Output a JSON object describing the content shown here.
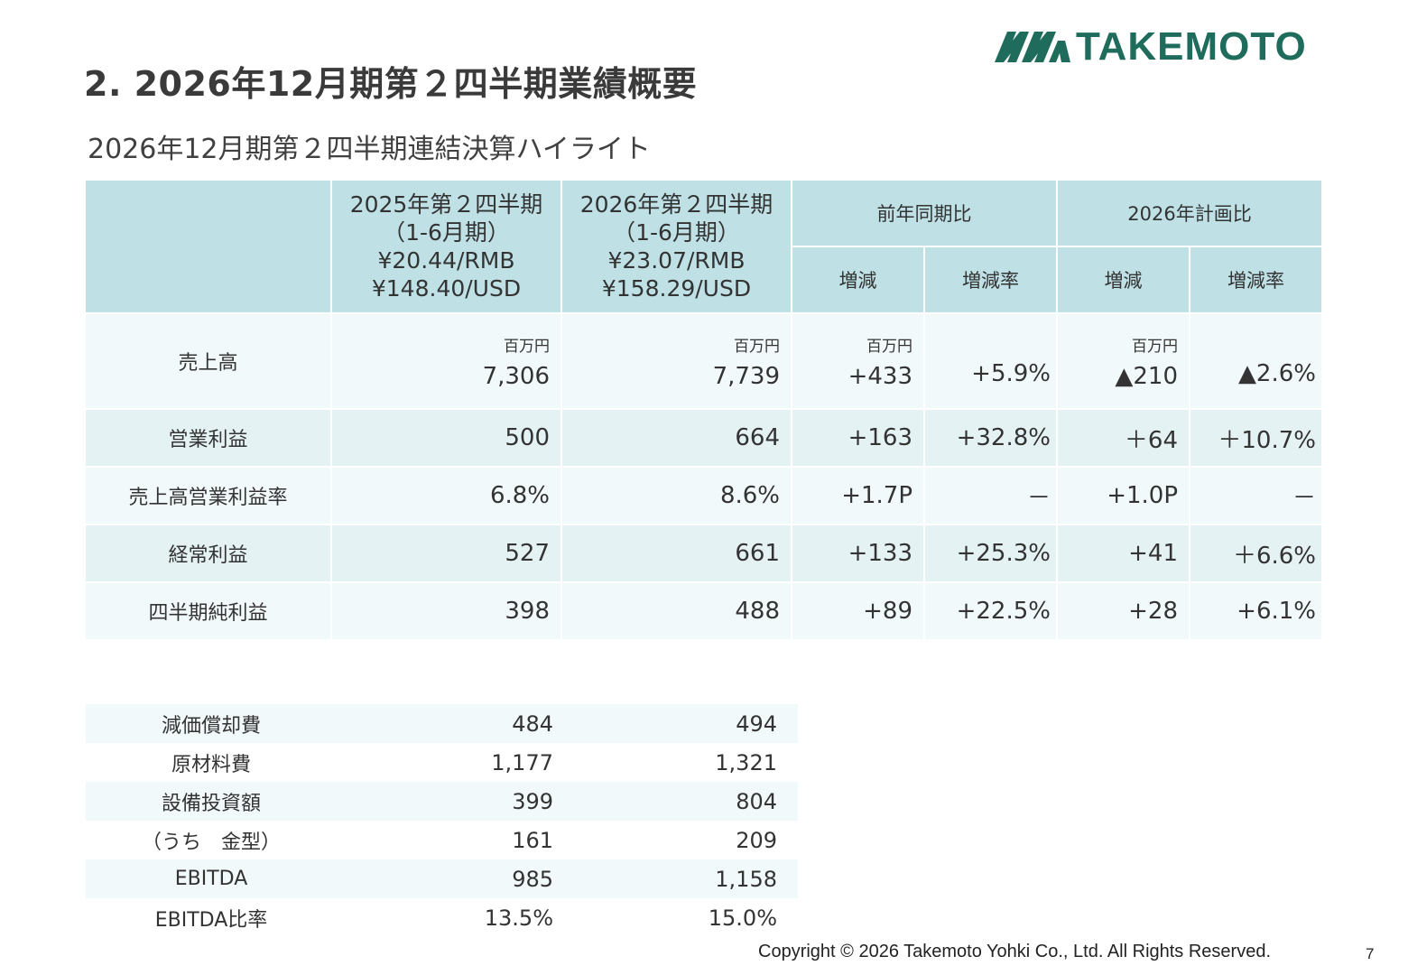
{
  "header": {
    "title": "2. 2026年12月期第２四半期業績概要",
    "subtitle": "2026年12月期第２四半期連結決算ハイライト",
    "logo_text": "TAKEMOTO",
    "logo_color": "#1f6b5c"
  },
  "main_table": {
    "col1": {
      "line1": "2025年第２四半期",
      "line2": "（1-6月期）",
      "line3": "¥20.44/RMB",
      "line4": "¥148.40/USD"
    },
    "col2": {
      "line1": "2026年第２四半期",
      "line2": "（1-6月期）",
      "line3": "¥23.07/RMB",
      "line4": "¥158.29/USD"
    },
    "group_yoy": "前年同期比",
    "group_plan": "2026年計画比",
    "sub_change": "増減",
    "sub_rate": "増減率",
    "unit": "百万円",
    "rows": [
      {
        "label": "売上高",
        "v2025": "7,306",
        "v2026": "7,739",
        "yoy_chg": "+433",
        "yoy_rate": "+5.9%",
        "plan_chg": "▲210",
        "plan_rate": "▲2.6%"
      },
      {
        "label": "営業利益",
        "v2025": "500",
        "v2026": "664",
        "yoy_chg": "+163",
        "yoy_rate": "+32.8%",
        "plan_chg": "＋64",
        "plan_rate": "＋10.7%"
      },
      {
        "label": "売上高営業利益率",
        "v2025": "6.8%",
        "v2026": "8.6%",
        "yoy_chg": "+1.7P",
        "yoy_rate": "－",
        "plan_chg": "+1.0P",
        "plan_rate": "－"
      },
      {
        "label": "経常利益",
        "v2025": "527",
        "v2026": "661",
        "yoy_chg": "+133",
        "yoy_rate": "+25.3%",
        "plan_chg": "+41",
        "plan_rate": "＋6.6%"
      },
      {
        "label": "四半期純利益",
        "v2025": "398",
        "v2026": "488",
        "yoy_chg": "+89",
        "yoy_rate": "+22.5%",
        "plan_chg": "+28",
        "plan_rate": "+6.1%"
      }
    ]
  },
  "sub_table": {
    "rows": [
      {
        "label": "減価償却費",
        "v2025": "484",
        "v2026": "494"
      },
      {
        "label": "原材料費",
        "v2025": "1,177",
        "v2026": "1,321"
      },
      {
        "label": "設備投資額",
        "v2025": "399",
        "v2026": "804"
      },
      {
        "label": "（うち　金型）",
        "v2025": "161",
        "v2026": "209"
      },
      {
        "label": "EBITDA",
        "v2025": "985",
        "v2026": "1,158"
      },
      {
        "label": "EBITDA比率",
        "v2025": "13.5%",
        "v2026": "15.0%"
      }
    ]
  },
  "footer": {
    "copyright": "Copyright © 2026 Takemoto Yohki Co., Ltd. All Rights Reserved.",
    "page": "7"
  }
}
